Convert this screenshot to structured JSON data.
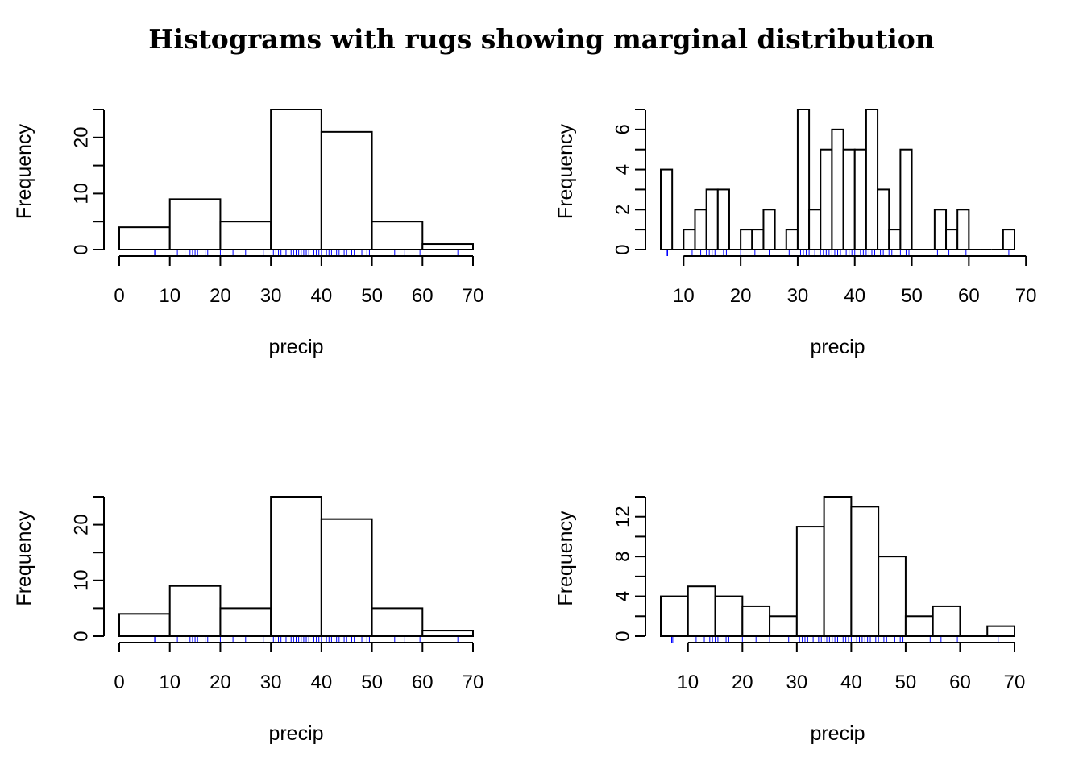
{
  "figure": {
    "title": "Histograms with rugs showing marginal distribution"
  },
  "colors": {
    "bar_fill": "#ffffff",
    "bar_stroke": "#000000",
    "rug": "#0000ff",
    "axis": "#000000"
  },
  "rug_values": [
    7.0,
    7.2,
    11.5,
    13.0,
    14.0,
    14.5,
    15.0,
    15.5,
    17.0,
    17.5,
    20.0,
    22.5,
    25.0,
    28.5,
    30.5,
    31.0,
    31.5,
    32.0,
    33.0,
    34.0,
    34.5,
    35.0,
    35.5,
    36.0,
    36.5,
    37.0,
    37.5,
    38.5,
    39.0,
    39.5,
    40.0,
    41.0,
    41.5,
    42.0,
    42.5,
    43.0,
    43.5,
    44.5,
    45.0,
    46.0,
    46.5,
    48.0,
    49.0,
    49.5,
    54.5,
    56.5,
    59.5,
    67.0
  ],
  "chart_data": [
    {
      "type": "bar",
      "panel": "top-left",
      "title": "",
      "xlabel": "precip",
      "ylabel": "Frequency",
      "bin_edges": [
        0,
        10,
        20,
        30,
        40,
        50,
        60,
        70
      ],
      "values": [
        4,
        9,
        5,
        25,
        21,
        5,
        1
      ],
      "xlim": [
        0,
        70
      ],
      "ylim": [
        0,
        25
      ],
      "xticks": [
        0,
        10,
        20,
        30,
        40,
        50,
        60,
        70
      ],
      "xtick_labels": [
        "0",
        "10",
        "20",
        "30",
        "40",
        "50",
        "60",
        "70"
      ],
      "yticks": [
        0,
        5,
        10,
        15,
        20,
        25
      ],
      "ytick_labels": [
        "0",
        "",
        "10",
        "",
        "20",
        ""
      ],
      "rug": true
    },
    {
      "type": "bar",
      "panel": "top-right",
      "title": "",
      "xlabel": "precip",
      "ylabel": "Frequency",
      "bin_edges": [
        6,
        8,
        10,
        12,
        14,
        16,
        18,
        20,
        22,
        24,
        26,
        28,
        30,
        32,
        34,
        36,
        38,
        40,
        42,
        44,
        46,
        48,
        50,
        52,
        54,
        56,
        58,
        60,
        62,
        64,
        66,
        68
      ],
      "values": [
        4,
        0,
        1,
        2,
        3,
        3,
        0,
        1,
        1,
        2,
        0,
        1,
        7,
        2,
        5,
        6,
        5,
        5,
        7,
        3,
        1,
        5,
        0,
        0,
        2,
        1,
        2,
        0,
        0,
        0,
        1
      ],
      "xlim": [
        6,
        68
      ],
      "ylim": [
        0,
        7
      ],
      "xticks": [
        10,
        20,
        30,
        40,
        50,
        60,
        70
      ],
      "xtick_labels": [
        "10",
        "20",
        "30",
        "40",
        "50",
        "60",
        "70"
      ],
      "yticks": [
        0,
        1,
        2,
        3,
        4,
        5,
        6,
        7
      ],
      "ytick_labels": [
        "0",
        "",
        "2",
        "",
        "4",
        "",
        "6",
        ""
      ],
      "rug": true
    },
    {
      "type": "bar",
      "panel": "bottom-left",
      "title": "",
      "xlabel": "precip",
      "ylabel": "Frequency",
      "bin_edges": [
        0,
        10,
        20,
        30,
        40,
        50,
        60,
        70
      ],
      "values": [
        4,
        9,
        5,
        25,
        21,
        5,
        1
      ],
      "xlim": [
        0,
        70
      ],
      "ylim": [
        0,
        25
      ],
      "xticks": [
        0,
        10,
        20,
        30,
        40,
        50,
        60,
        70
      ],
      "xtick_labels": [
        "0",
        "10",
        "20",
        "30",
        "40",
        "50",
        "60",
        "70"
      ],
      "yticks": [
        0,
        5,
        10,
        15,
        20,
        25
      ],
      "ytick_labels": [
        "0",
        "",
        "10",
        "",
        "20",
        ""
      ],
      "rug": true
    },
    {
      "type": "bar",
      "panel": "bottom-right",
      "title": "",
      "xlabel": "precip",
      "ylabel": "Frequency",
      "bin_edges": [
        5,
        10,
        15,
        20,
        25,
        30,
        35,
        40,
        45,
        50,
        55,
        60,
        65,
        70
      ],
      "values": [
        4,
        5,
        4,
        3,
        2,
        11,
        14,
        13,
        8,
        2,
        3,
        0,
        1
      ],
      "xlim": [
        5,
        70
      ],
      "ylim": [
        0,
        14
      ],
      "xticks": [
        10,
        20,
        30,
        40,
        50,
        60,
        70
      ],
      "xtick_labels": [
        "10",
        "20",
        "30",
        "40",
        "50",
        "60",
        "70"
      ],
      "yticks": [
        0,
        2,
        4,
        6,
        8,
        10,
        12,
        14
      ],
      "ytick_labels": [
        "0",
        "",
        "4",
        "",
        "8",
        "",
        "12",
        ""
      ],
      "rug": true
    }
  ]
}
